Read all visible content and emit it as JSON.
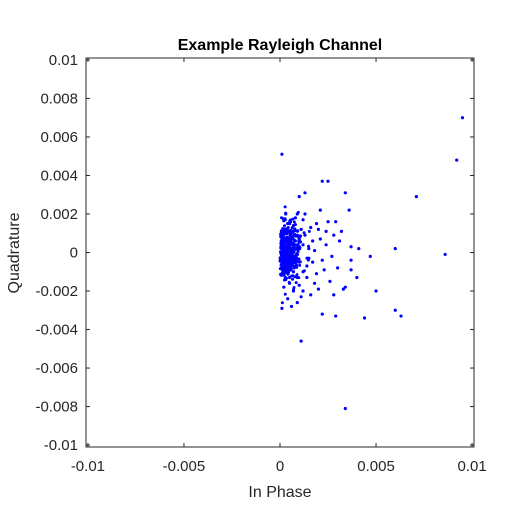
{
  "chart_data": {
    "type": "scatter",
    "title": "Example Rayleigh Channel",
    "xlabel": "In Phase",
    "ylabel": "Quadrature",
    "xlim": [
      -0.0101,
      0.0101
    ],
    "ylim": [
      -0.0101,
      0.0101
    ],
    "x_ticks": [
      -0.01,
      -0.005,
      0,
      0.005,
      0.01
    ],
    "x_tick_labels": [
      "-0.01",
      "-0.005",
      "0",
      "0.005",
      "0.01"
    ],
    "y_ticks": [
      -0.01,
      -0.008,
      -0.006,
      -0.004,
      -0.002,
      0,
      0.002,
      0.004,
      0.006,
      0.008,
      0.01
    ],
    "y_tick_labels": [
      "-0.01",
      "-0.008",
      "-0.006",
      "-0.004",
      "-0.002",
      "0",
      "0.002",
      "0.004",
      "0.006",
      "0.008",
      "0.01"
    ],
    "grid": false,
    "marker_color": "#0000ff",
    "series": [
      {
        "points": [
          [
            0.0095,
            0.007
          ],
          [
            0.0092,
            0.0048
          ],
          [
            0.0071,
            0.0029
          ],
          [
            0.0086,
            -0.0001
          ],
          [
            0.006,
            0.0002
          ],
          [
            0.0063,
            -0.0033
          ],
          [
            0.006,
            -0.003
          ],
          [
            0.005,
            -0.002
          ],
          [
            0.0047,
            -0.0002
          ],
          [
            0.0044,
            -0.0034
          ],
          [
            0.0041,
            0.0002
          ],
          [
            0.0036,
            0.0022
          ],
          [
            0.0034,
            -0.0081
          ],
          [
            0.0034,
            0.0031
          ],
          [
            0.0034,
            -0.0018
          ],
          [
            0.0033,
            -0.0019
          ],
          [
            0.0032,
            0.0011
          ],
          [
            0.0037,
            0.0003
          ],
          [
            0.0037,
            -0.0004
          ],
          [
            0.0037,
            -0.0009
          ],
          [
            0.0029,
            -0.0033
          ],
          [
            0.0029,
            0.0016
          ],
          [
            0.0025,
            0.0037
          ],
          [
            0.0022,
            0.0037
          ],
          [
            0.0022,
            -0.0032
          ],
          [
            0.0021,
            0.0022
          ],
          [
            0.0011,
            -0.0046
          ],
          [
            0.0001,
            0.0051
          ],
          [
            0.0013,
            0.0031
          ],
          [
            0.001,
            0.0029
          ],
          [
            0.0008,
            0.0018
          ],
          [
            0.0007,
            0.0014
          ],
          [
            0.0009,
            0.002
          ],
          [
            0.0003,
            0.002
          ],
          [
            0.0005,
            0.0015
          ],
          [
            0.0012,
            0.0017
          ],
          [
            0.0002,
            0.0005
          ],
          [
            0.0004,
            -0.0004
          ],
          [
            0.0006,
            0.0008
          ],
          [
            0.0008,
            -0.0007
          ],
          [
            0.0003,
            0.0011
          ],
          [
            0.001,
            0.0003
          ],
          [
            0.0012,
            -0.001
          ],
          [
            0.0005,
            -0.0013
          ],
          [
            0.0002,
            -0.0018
          ],
          [
            0.0007,
            -0.002
          ],
          [
            0.001,
            -0.0017
          ],
          [
            0.0014,
            -0.0013
          ],
          [
            0.0004,
            -0.0024
          ],
          [
            0.0009,
            -0.0026
          ],
          [
            0.0006,
            -0.0028
          ],
          [
            0.0001,
            -0.0029
          ],
          [
            0.0012,
            -0.002
          ],
          [
            0.0016,
            -0.0022
          ],
          [
            0.0019,
            -0.0011
          ],
          [
            0.0022,
            -0.0004
          ],
          [
            0.0024,
            0.0004
          ],
          [
            0.0028,
            0.0009
          ],
          [
            0.003,
            -0.0008
          ],
          [
            0.0026,
            -0.0015
          ],
          [
            0.002,
            0.0012
          ],
          [
            0.0017,
            0.0006
          ],
          [
            0.0015,
            -0.0003
          ],
          [
            0.0018,
            0.0001
          ],
          [
            0.0013,
            0.0009
          ],
          [
            0.0011,
            0.0012
          ],
          [
            0.0006,
            0.0005
          ],
          [
            0.0003,
            -0.0008
          ],
          [
            0.0002,
            0.0
          ],
          [
            0.0005,
            0.0002
          ],
          [
            0.0008,
            -0.0002
          ],
          [
            0.0004,
            0.0007
          ],
          [
            0.0007,
            -0.001
          ],
          [
            0.0009,
            0.0009
          ],
          [
            0.0003,
            -0.0003
          ],
          [
            0.0006,
            -0.0005
          ],
          [
            0.0002,
            0.0012
          ],
          [
            0.001,
            -0.0005
          ],
          [
            0.0001,
            -0.0006
          ],
          [
            0.0004,
            0.0015
          ],
          [
            0.0012,
            0.0004
          ],
          [
            0.0014,
            -0.0007
          ],
          [
            0.0003,
            0.0003
          ],
          [
            0.0006,
            0.0011
          ],
          [
            0.0002,
            -0.0011
          ],
          [
            0.0008,
            0.0006
          ],
          [
            0.0005,
            -0.0016
          ],
          [
            0.0009,
            -0.0013
          ],
          [
            0.0001,
            0.0008
          ],
          [
            0.0003,
            -0.0014
          ],
          [
            0.0007,
            0.0001
          ],
          [
            0.0004,
            -0.0001
          ],
          [
            0.0016,
            0.0013
          ],
          [
            0.0018,
            -0.0016
          ],
          [
            0.0021,
            0.0007
          ],
          [
            0.0023,
            -0.0009
          ],
          [
            0.0025,
            0.0016
          ],
          [
            0.002,
            -0.0019
          ],
          [
            0.0013,
            0.002
          ],
          [
            0.0011,
            -0.0023
          ],
          [
            0.0027,
            -0.0002
          ],
          [
            0.0015,
            0.0002
          ],
          [
            0.0019,
            0.0015
          ],
          [
            0.0017,
            -0.0005
          ],
          [
            0.004,
            -0.0013
          ],
          [
            0.0031,
            0.0006
          ],
          [
            0.0028,
            -0.0022
          ],
          [
            0.0024,
            0.0011
          ]
        ]
      }
    ]
  }
}
